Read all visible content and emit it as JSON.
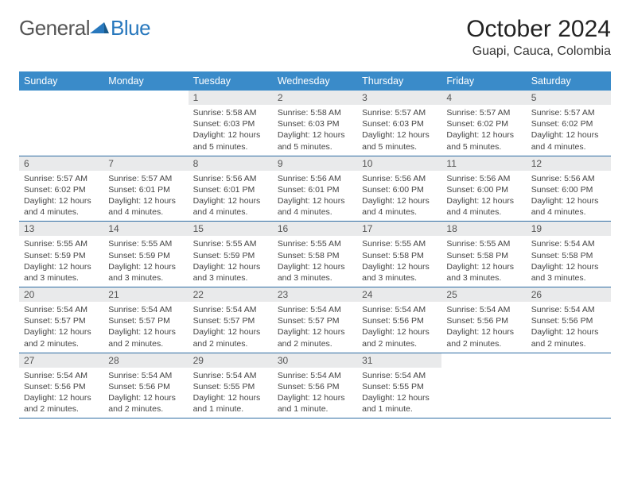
{
  "logo": {
    "text1": "General",
    "text2": "Blue"
  },
  "title": "October 2024",
  "location": "Guapi, Cauca, Colombia",
  "colors": {
    "header_bg": "#3a8bc9",
    "header_text": "#ffffff",
    "daynum_bg": "#e9eaeb",
    "row_border": "#2e6ca3",
    "logo_gray": "#555555",
    "logo_blue": "#2878bd",
    "text": "#444444"
  },
  "weekdays": [
    "Sunday",
    "Monday",
    "Tuesday",
    "Wednesday",
    "Thursday",
    "Friday",
    "Saturday"
  ],
  "cells": [
    {
      "n": "",
      "l1": "",
      "l2": "",
      "l3": "",
      "l4": ""
    },
    {
      "n": "",
      "l1": "",
      "l2": "",
      "l3": "",
      "l4": ""
    },
    {
      "n": "1",
      "l1": "Sunrise: 5:58 AM",
      "l2": "Sunset: 6:03 PM",
      "l3": "Daylight: 12 hours",
      "l4": "and 5 minutes."
    },
    {
      "n": "2",
      "l1": "Sunrise: 5:58 AM",
      "l2": "Sunset: 6:03 PM",
      "l3": "Daylight: 12 hours",
      "l4": "and 5 minutes."
    },
    {
      "n": "3",
      "l1": "Sunrise: 5:57 AM",
      "l2": "Sunset: 6:03 PM",
      "l3": "Daylight: 12 hours",
      "l4": "and 5 minutes."
    },
    {
      "n": "4",
      "l1": "Sunrise: 5:57 AM",
      "l2": "Sunset: 6:02 PM",
      "l3": "Daylight: 12 hours",
      "l4": "and 5 minutes."
    },
    {
      "n": "5",
      "l1": "Sunrise: 5:57 AM",
      "l2": "Sunset: 6:02 PM",
      "l3": "Daylight: 12 hours",
      "l4": "and 4 minutes."
    },
    {
      "n": "6",
      "l1": "Sunrise: 5:57 AM",
      "l2": "Sunset: 6:02 PM",
      "l3": "Daylight: 12 hours",
      "l4": "and 4 minutes."
    },
    {
      "n": "7",
      "l1": "Sunrise: 5:57 AM",
      "l2": "Sunset: 6:01 PM",
      "l3": "Daylight: 12 hours",
      "l4": "and 4 minutes."
    },
    {
      "n": "8",
      "l1": "Sunrise: 5:56 AM",
      "l2": "Sunset: 6:01 PM",
      "l3": "Daylight: 12 hours",
      "l4": "and 4 minutes."
    },
    {
      "n": "9",
      "l1": "Sunrise: 5:56 AM",
      "l2": "Sunset: 6:01 PM",
      "l3": "Daylight: 12 hours",
      "l4": "and 4 minutes."
    },
    {
      "n": "10",
      "l1": "Sunrise: 5:56 AM",
      "l2": "Sunset: 6:00 PM",
      "l3": "Daylight: 12 hours",
      "l4": "and 4 minutes."
    },
    {
      "n": "11",
      "l1": "Sunrise: 5:56 AM",
      "l2": "Sunset: 6:00 PM",
      "l3": "Daylight: 12 hours",
      "l4": "and 4 minutes."
    },
    {
      "n": "12",
      "l1": "Sunrise: 5:56 AM",
      "l2": "Sunset: 6:00 PM",
      "l3": "Daylight: 12 hours",
      "l4": "and 4 minutes."
    },
    {
      "n": "13",
      "l1": "Sunrise: 5:55 AM",
      "l2": "Sunset: 5:59 PM",
      "l3": "Daylight: 12 hours",
      "l4": "and 3 minutes."
    },
    {
      "n": "14",
      "l1": "Sunrise: 5:55 AM",
      "l2": "Sunset: 5:59 PM",
      "l3": "Daylight: 12 hours",
      "l4": "and 3 minutes."
    },
    {
      "n": "15",
      "l1": "Sunrise: 5:55 AM",
      "l2": "Sunset: 5:59 PM",
      "l3": "Daylight: 12 hours",
      "l4": "and 3 minutes."
    },
    {
      "n": "16",
      "l1": "Sunrise: 5:55 AM",
      "l2": "Sunset: 5:58 PM",
      "l3": "Daylight: 12 hours",
      "l4": "and 3 minutes."
    },
    {
      "n": "17",
      "l1": "Sunrise: 5:55 AM",
      "l2": "Sunset: 5:58 PM",
      "l3": "Daylight: 12 hours",
      "l4": "and 3 minutes."
    },
    {
      "n": "18",
      "l1": "Sunrise: 5:55 AM",
      "l2": "Sunset: 5:58 PM",
      "l3": "Daylight: 12 hours",
      "l4": "and 3 minutes."
    },
    {
      "n": "19",
      "l1": "Sunrise: 5:54 AM",
      "l2": "Sunset: 5:58 PM",
      "l3": "Daylight: 12 hours",
      "l4": "and 3 minutes."
    },
    {
      "n": "20",
      "l1": "Sunrise: 5:54 AM",
      "l2": "Sunset: 5:57 PM",
      "l3": "Daylight: 12 hours",
      "l4": "and 2 minutes."
    },
    {
      "n": "21",
      "l1": "Sunrise: 5:54 AM",
      "l2": "Sunset: 5:57 PM",
      "l3": "Daylight: 12 hours",
      "l4": "and 2 minutes."
    },
    {
      "n": "22",
      "l1": "Sunrise: 5:54 AM",
      "l2": "Sunset: 5:57 PM",
      "l3": "Daylight: 12 hours",
      "l4": "and 2 minutes."
    },
    {
      "n": "23",
      "l1": "Sunrise: 5:54 AM",
      "l2": "Sunset: 5:57 PM",
      "l3": "Daylight: 12 hours",
      "l4": "and 2 minutes."
    },
    {
      "n": "24",
      "l1": "Sunrise: 5:54 AM",
      "l2": "Sunset: 5:56 PM",
      "l3": "Daylight: 12 hours",
      "l4": "and 2 minutes."
    },
    {
      "n": "25",
      "l1": "Sunrise: 5:54 AM",
      "l2": "Sunset: 5:56 PM",
      "l3": "Daylight: 12 hours",
      "l4": "and 2 minutes."
    },
    {
      "n": "26",
      "l1": "Sunrise: 5:54 AM",
      "l2": "Sunset: 5:56 PM",
      "l3": "Daylight: 12 hours",
      "l4": "and 2 minutes."
    },
    {
      "n": "27",
      "l1": "Sunrise: 5:54 AM",
      "l2": "Sunset: 5:56 PM",
      "l3": "Daylight: 12 hours",
      "l4": "and 2 minutes."
    },
    {
      "n": "28",
      "l1": "Sunrise: 5:54 AM",
      "l2": "Sunset: 5:56 PM",
      "l3": "Daylight: 12 hours",
      "l4": "and 2 minutes."
    },
    {
      "n": "29",
      "l1": "Sunrise: 5:54 AM",
      "l2": "Sunset: 5:55 PM",
      "l3": "Daylight: 12 hours",
      "l4": "and 1 minute."
    },
    {
      "n": "30",
      "l1": "Sunrise: 5:54 AM",
      "l2": "Sunset: 5:56 PM",
      "l3": "Daylight: 12 hours",
      "l4": "and 1 minute."
    },
    {
      "n": "31",
      "l1": "Sunrise: 5:54 AM",
      "l2": "Sunset: 5:55 PM",
      "l3": "Daylight: 12 hours",
      "l4": "and 1 minute."
    },
    {
      "n": "",
      "l1": "",
      "l2": "",
      "l3": "",
      "l4": ""
    },
    {
      "n": "",
      "l1": "",
      "l2": "",
      "l3": "",
      "l4": ""
    }
  ]
}
